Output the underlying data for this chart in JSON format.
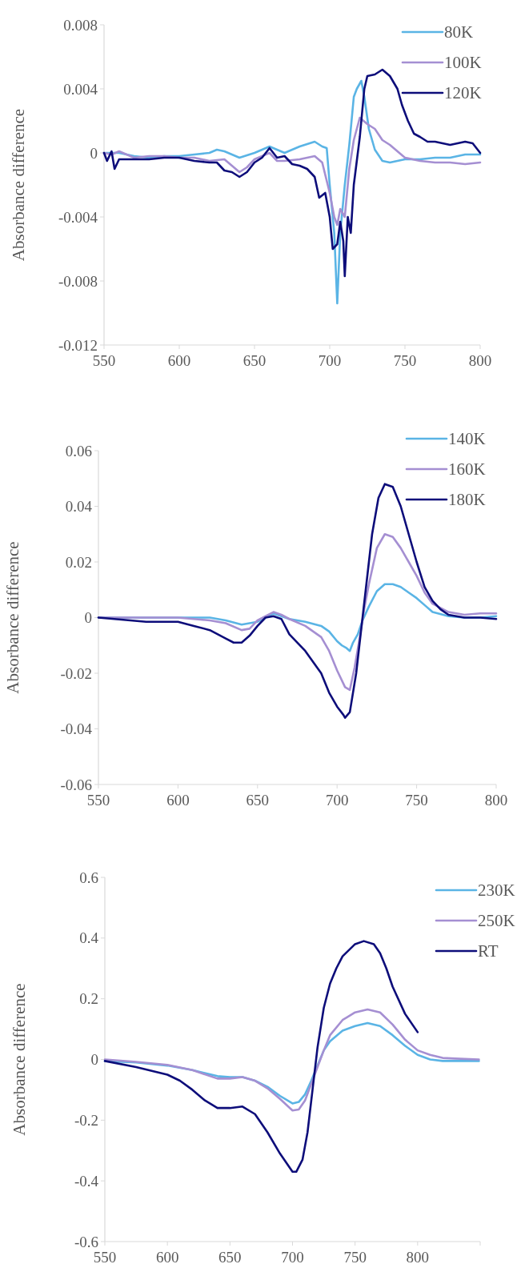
{
  "chart_data": [
    {
      "type": "line",
      "ylabel": "Absorbance difference",
      "xlim": [
        550,
        800
      ],
      "xticks": [
        550,
        600,
        650,
        700,
        750,
        800
      ],
      "ylim": [
        -0.012,
        0.008
      ],
      "yticks": [
        -0.012,
        -0.008,
        -0.004,
        0,
        0.004,
        0.008
      ],
      "grid": false,
      "legend": "top right",
      "line_style": "solid",
      "series": [
        {
          "name": "80K",
          "color": "#5ab4e5",
          "x": [
            550,
            560,
            570,
            580,
            590,
            600,
            610,
            620,
            625,
            630,
            640,
            650,
            660,
            665,
            670,
            680,
            690,
            695,
            698,
            700,
            703,
            705,
            707,
            710,
            713,
            716,
            718,
            721,
            723,
            726,
            730,
            735,
            740,
            745,
            750,
            760,
            770,
            780,
            790,
            800
          ],
          "values": [
            0,
            0,
            -0.0002,
            -0.0003,
            -0.0002,
            -0.0002,
            -0.0001,
            0,
            0.0002,
            0.0001,
            -0.0003,
            0,
            0.0004,
            0.0002,
            0,
            0.0004,
            0.0007,
            0.0004,
            0.0003,
            -0.002,
            -0.005,
            -0.0094,
            -0.005,
            -0.002,
            0.0005,
            0.0035,
            0.004,
            0.0045,
            0.0035,
            0.0015,
            0.0002,
            -0.0005,
            -0.0006,
            -0.0005,
            -0.0004,
            -0.0004,
            -0.0003,
            -0.0003,
            -0.0001,
            -0.0001
          ]
        },
        {
          "name": "100K",
          "color": "#a58fd2",
          "x": [
            550,
            555,
            560,
            570,
            580,
            590,
            600,
            610,
            620,
            630,
            635,
            640,
            645,
            650,
            655,
            660,
            665,
            670,
            680,
            690,
            695,
            700,
            703,
            705,
            707,
            710,
            713,
            716,
            720,
            725,
            730,
            735,
            740,
            745,
            750,
            760,
            770,
            780,
            790,
            800
          ],
          "values": [
            0,
            -0.0001,
            0.0001,
            -0.0003,
            -0.0002,
            -0.0002,
            -0.0003,
            -0.0003,
            -0.0005,
            -0.0004,
            -0.0008,
            -0.0012,
            -0.0009,
            -0.0004,
            -0.0002,
            0,
            -0.0005,
            -0.0005,
            -0.0004,
            -0.0002,
            -0.0006,
            -0.0025,
            -0.004,
            -0.0045,
            -0.0035,
            -0.004,
            -0.001,
            0.0008,
            0.0022,
            0.0018,
            0.0015,
            0.0008,
            0.0005,
            0.0001,
            -0.0003,
            -0.0005,
            -0.0006,
            -0.0006,
            -0.0007,
            -0.0006
          ]
        },
        {
          "name": "120K",
          "color": "#0d0d7a",
          "x": [
            550,
            552,
            555,
            557,
            560,
            570,
            580,
            590,
            600,
            610,
            620,
            625,
            630,
            635,
            640,
            645,
            650,
            655,
            660,
            665,
            670,
            675,
            680,
            685,
            690,
            693,
            697,
            700,
            702,
            705,
            707,
            709,
            710,
            712,
            714,
            716,
            720,
            723,
            725,
            730,
            735,
            740,
            745,
            748,
            752,
            756,
            760,
            765,
            770,
            775,
            780,
            785,
            790,
            795,
            800
          ],
          "values": [
            0,
            -0.0005,
            0.0001,
            -0.001,
            -0.0004,
            -0.0004,
            -0.0004,
            -0.0003,
            -0.0003,
            -0.0005,
            -0.0006,
            -0.0006,
            -0.0011,
            -0.0012,
            -0.0015,
            -0.0012,
            -0.0006,
            -0.0003,
            0.0003,
            -0.0003,
            -0.0002,
            -0.0007,
            -0.0008,
            -0.001,
            -0.0015,
            -0.0028,
            -0.0025,
            -0.004,
            -0.006,
            -0.0057,
            -0.0043,
            -0.0055,
            -0.0077,
            -0.004,
            -0.005,
            -0.002,
            0.001,
            0.004,
            0.0048,
            0.0049,
            0.0052,
            0.0048,
            0.004,
            0.003,
            0.002,
            0.0012,
            0.001,
            0.0007,
            0.0007,
            0.0006,
            0.0005,
            0.0006,
            0.0007,
            0.0006,
            0
          ]
        }
      ]
    },
    {
      "type": "line",
      "ylabel": "Absorbance difference",
      "xlim": [
        550,
        800
      ],
      "xticks": [
        550,
        600,
        650,
        700,
        750,
        800
      ],
      "ylim": [
        -0.06,
        0.06
      ],
      "yticks": [
        -0.06,
        -0.04,
        -0.02,
        0,
        0.02,
        0.04,
        0.06
      ],
      "grid": false,
      "legend": "top right",
      "line_style": "solid",
      "series": [
        {
          "name": "140K",
          "color": "#5ab4e5",
          "x": [
            550,
            580,
            600,
            620,
            630,
            640,
            650,
            660,
            670,
            680,
            690,
            695,
            700,
            703,
            706,
            708,
            710,
            713,
            716,
            720,
            725,
            730,
            735,
            740,
            745,
            750,
            755,
            760,
            770,
            780,
            790,
            800
          ],
          "values": [
            0,
            0,
            0,
            0,
            -0.001,
            -0.0025,
            -0.0015,
            0.0015,
            -0.0005,
            -0.0015,
            -0.003,
            -0.005,
            -0.0085,
            -0.01,
            -0.011,
            -0.012,
            -0.009,
            -0.006,
            -0.001,
            0.004,
            0.0095,
            0.012,
            0.012,
            0.011,
            0.009,
            0.007,
            0.0045,
            0.002,
            0.0005,
            0,
            0,
            0.0005
          ]
        },
        {
          "name": "160K",
          "color": "#a58fd2",
          "x": [
            550,
            580,
            600,
            620,
            630,
            640,
            645,
            650,
            660,
            665,
            670,
            680,
            690,
            695,
            700,
            705,
            708,
            711,
            714,
            717,
            720,
            725,
            730,
            735,
            740,
            745,
            750,
            755,
            760,
            770,
            780,
            790,
            800
          ],
          "values": [
            0,
            0,
            0,
            -0.001,
            -0.002,
            -0.0045,
            -0.004,
            -0.001,
            0.002,
            0.001,
            -0.0005,
            -0.003,
            -0.007,
            -0.012,
            -0.019,
            -0.025,
            -0.026,
            -0.018,
            -0.008,
            0.003,
            0.012,
            0.025,
            0.03,
            0.029,
            0.025,
            0.02,
            0.015,
            0.009,
            0.005,
            0.002,
            0.001,
            0.0015,
            0.0015
          ]
        },
        {
          "name": "180K",
          "color": "#0d0d7a",
          "x": [
            550,
            560,
            580,
            600,
            610,
            620,
            630,
            635,
            640,
            645,
            650,
            655,
            660,
            665,
            670,
            680,
            690,
            695,
            700,
            704,
            705,
            708,
            712,
            715,
            718,
            722,
            726,
            730,
            735,
            740,
            745,
            750,
            755,
            760,
            765,
            770,
            780,
            790,
            800
          ],
          "values": [
            0,
            -0.0005,
            -0.0015,
            -0.0015,
            -0.003,
            -0.0045,
            -0.0075,
            -0.009,
            -0.009,
            -0.0065,
            -0.003,
            0,
            0.0005,
            -0.0005,
            -0.006,
            -0.012,
            -0.02,
            -0.027,
            -0.032,
            -0.035,
            -0.036,
            -0.034,
            -0.02,
            -0.005,
            0.01,
            0.03,
            0.043,
            0.048,
            0.047,
            0.04,
            0.03,
            0.02,
            0.011,
            0.006,
            0.003,
            0.001,
            0,
            0,
            -0.0005
          ]
        }
      ]
    },
    {
      "type": "line",
      "ylabel": "Absorbance difference",
      "xlim": [
        550,
        850
      ],
      "xticks": [
        550,
        600,
        650,
        700,
        750,
        800,
        {
          "value": 850,
          "label": null
        }
      ],
      "ylim": [
        -0.6,
        0.6
      ],
      "yticks": [
        -0.6,
        -0.4,
        -0.2,
        0,
        0.2,
        0.4,
        0.6
      ],
      "grid": false,
      "legend": "top right",
      "line_style": "solid",
      "series": [
        {
          "name": "230K",
          "color": "#5ab4e5",
          "x": [
            550,
            575,
            600,
            620,
            640,
            650,
            660,
            670,
            680,
            690,
            700,
            705,
            710,
            715,
            720,
            725,
            730,
            740,
            750,
            760,
            770,
            780,
            790,
            800,
            810,
            820,
            830,
            849
          ],
          "values": [
            -0.005,
            -0.01,
            -0.02,
            -0.035,
            -0.055,
            -0.058,
            -0.058,
            -0.07,
            -0.09,
            -0.12,
            -0.145,
            -0.14,
            -0.115,
            -0.07,
            -0.02,
            0.03,
            0.06,
            0.095,
            0.11,
            0.12,
            0.11,
            0.08,
            0.045,
            0.015,
            0,
            -0.005,
            -0.005,
            -0.005
          ]
        },
        {
          "name": "250K",
          "color": "#a58fd2",
          "x": [
            550,
            575,
            600,
            620,
            640,
            650,
            660,
            670,
            680,
            690,
            700,
            705,
            710,
            715,
            720,
            725,
            730,
            740,
            750,
            760,
            770,
            780,
            790,
            800,
            810,
            820,
            830,
            849
          ],
          "values": [
            0,
            -0.008,
            -0.018,
            -0.035,
            -0.063,
            -0.063,
            -0.058,
            -0.07,
            -0.095,
            -0.13,
            -0.168,
            -0.165,
            -0.135,
            -0.08,
            -0.025,
            0.03,
            0.08,
            0.13,
            0.155,
            0.165,
            0.155,
            0.115,
            0.065,
            0.03,
            0.015,
            0.005,
            0.003,
            0
          ]
        },
        {
          "name": "RT",
          "color": "#0d0d7a",
          "x": [
            550,
            575,
            600,
            610,
            620,
            630,
            640,
            650,
            660,
            670,
            680,
            690,
            700,
            703,
            708,
            712,
            716,
            720,
            725,
            730,
            735,
            740,
            750,
            757,
            765,
            770,
            775,
            780,
            790,
            800
          ],
          "values": [
            -0.005,
            -0.025,
            -0.05,
            -0.07,
            -0.1,
            -0.135,
            -0.16,
            -0.16,
            -0.155,
            -0.18,
            -0.24,
            -0.31,
            -0.37,
            -0.37,
            -0.33,
            -0.24,
            -0.1,
            0.04,
            0.17,
            0.25,
            0.3,
            0.34,
            0.38,
            0.39,
            0.38,
            0.35,
            0.3,
            0.24,
            0.15,
            0.09
          ]
        }
      ]
    }
  ]
}
